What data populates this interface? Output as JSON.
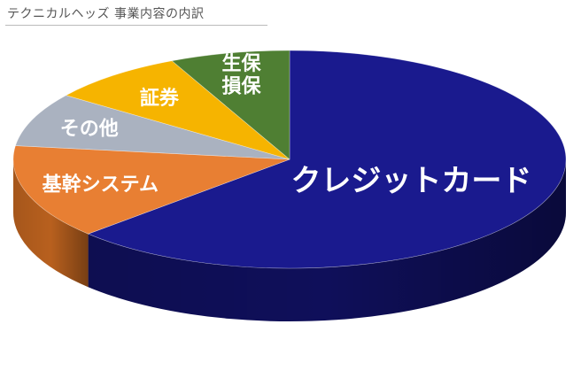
{
  "chart_data": {
    "type": "pie",
    "title": "テクニカルヘッズ 事業内容の内訳",
    "categories": [
      "クレジットカード",
      "基幹システム",
      "その他",
      "証券",
      "生保損保"
    ],
    "values": [
      63,
      14,
      8,
      8,
      7
    ],
    "label_lines": [
      [
        "クレジットカード"
      ],
      [
        "基幹システム"
      ],
      [
        "その他"
      ],
      [
        "証券"
      ],
      [
        "生保",
        "損保"
      ]
    ],
    "colors": [
      "#1a1a8e",
      "#e87f33",
      "#aab2c0",
      "#f6b400",
      "#4f7f33"
    ],
    "side_colors": [
      "#0f0f5a",
      "#b8601e",
      "#7f8694",
      "#c08b00",
      "#34562a"
    ],
    "legend": "none"
  }
}
